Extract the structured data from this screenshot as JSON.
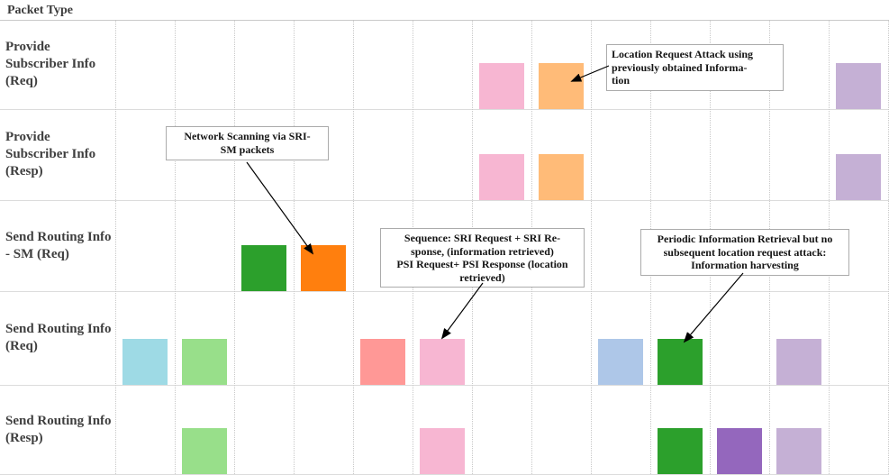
{
  "colors": {
    "green": "#2ca02c",
    "orange": "#ff7f0e",
    "light_orange": "#ffbb78",
    "light_cyan": "#9edae5",
    "light_green": "#98df8a",
    "salmon": "#ff9896",
    "pink": "#f7b6d2",
    "steel_blue": "#aec7e8",
    "purple": "#9467bd",
    "light_purple": "#c5b0d5",
    "grid_dotted": "#c8c8c8",
    "row_separator": "#dcdcdc",
    "label_text": "#3f3f3f",
    "annotation_border": "#ababab",
    "arrow": "#000000"
  },
  "chart_data": {
    "type": "scatter",
    "title": "",
    "y_axis_header": "Packet Type",
    "categories": [
      "Provide Subscriber Info (Req)",
      "Provide Subscriber Info (Resp)",
      "Send Routing Info - SM (Req)",
      "Send Routing Info (Req)",
      "Send Routing Info (Resp)"
    ],
    "row_labels": [
      "Provide\nSubscriber Info\n(Req)",
      "Provide\nSubscriber Info\n(Resp)",
      "Send Routing Info\n- SM (Req)",
      "Send Routing Info\n(Req)",
      "Send Routing Info\n(Resp)"
    ],
    "x_axis": {
      "tick_labels": [],
      "slots": 13,
      "gridlines": "dotted-vertical"
    },
    "legend": "none",
    "points": [
      {
        "row": 0,
        "slot": 6,
        "color": "pink"
      },
      {
        "row": 0,
        "slot": 7,
        "color": "light_orange"
      },
      {
        "row": 0,
        "slot": 12,
        "color": "light_purple"
      },
      {
        "row": 1,
        "slot": 6,
        "color": "pink"
      },
      {
        "row": 1,
        "slot": 7,
        "color": "light_orange"
      },
      {
        "row": 1,
        "slot": 12,
        "color": "light_purple"
      },
      {
        "row": 2,
        "slot": 2,
        "color": "green"
      },
      {
        "row": 2,
        "slot": 3,
        "color": "orange"
      },
      {
        "row": 3,
        "slot": 0,
        "color": "light_cyan"
      },
      {
        "row": 3,
        "slot": 1,
        "color": "light_green"
      },
      {
        "row": 3,
        "slot": 4,
        "color": "salmon"
      },
      {
        "row": 3,
        "slot": 5,
        "color": "pink"
      },
      {
        "row": 3,
        "slot": 8,
        "color": "steel_blue"
      },
      {
        "row": 3,
        "slot": 9,
        "color": "green"
      },
      {
        "row": 3,
        "slot": 11,
        "color": "light_purple"
      },
      {
        "row": 4,
        "slot": 1,
        "color": "light_green"
      },
      {
        "row": 4,
        "slot": 5,
        "color": "pink"
      },
      {
        "row": 4,
        "slot": 9,
        "color": "green"
      },
      {
        "row": 4,
        "slot": 10,
        "color": "purple"
      },
      {
        "row": 4,
        "slot": 11,
        "color": "light_purple"
      }
    ],
    "annotations": [
      {
        "text": "Location Request Attack using\npreviously obtained Informa-\ntion",
        "align": "left",
        "points_to": "row 0, slot 7 (light orange block)"
      },
      {
        "text": "Network Scanning via SRI-\nSM packets",
        "align": "center",
        "points_to": "row 2, slot 3 (orange block)"
      },
      {
        "text": "Sequence: SRI Request + SRI Re-\nsponse, (information retrieved)\nPSI Request+ PSI Response (location\nretrieved)",
        "align": "center",
        "points_to": "row 3, slot 5 (pink block)"
      },
      {
        "text": "Periodic Information Retrieval but no\nsubsequent location request attack:\nInformation harvesting",
        "align": "center",
        "points_to": "row 3, slot 9 (green block)"
      }
    ]
  }
}
